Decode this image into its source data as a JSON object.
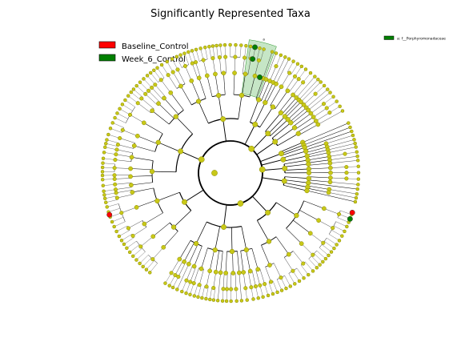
{
  "figure": {
    "title": "Significantly Represented Taxa"
  },
  "legend": {
    "items": [
      {
        "label": "Baseline_Control",
        "color": "#ff0000"
      },
      {
        "label": "Week_6_Control",
        "color": "#008000"
      }
    ]
  },
  "side_legend": {
    "items": [
      {
        "label": "a: f__Porphyromonadaceae",
        "color": "#008000"
      }
    ]
  },
  "cladogram": {
    "clade_label": "a",
    "node_color": "#c8c818",
    "node_edge": "#8a8a00",
    "highlight_color": "#008000",
    "highlight_fill": "#a8d8a8",
    "significant_nodes": [
      {
        "group": "Week_6_Control",
        "color": "#008000"
      },
      {
        "group": "Week_6_Control",
        "color": "#008000"
      },
      {
        "group": "Week_6_Control",
        "color": "#008000"
      },
      {
        "group": "Week_6_Control",
        "color": "#008000"
      },
      {
        "group": "Baseline_Control",
        "color": "#ff0000"
      },
      {
        "group": "Baseline_Control",
        "color": "#ff0000"
      }
    ]
  }
}
